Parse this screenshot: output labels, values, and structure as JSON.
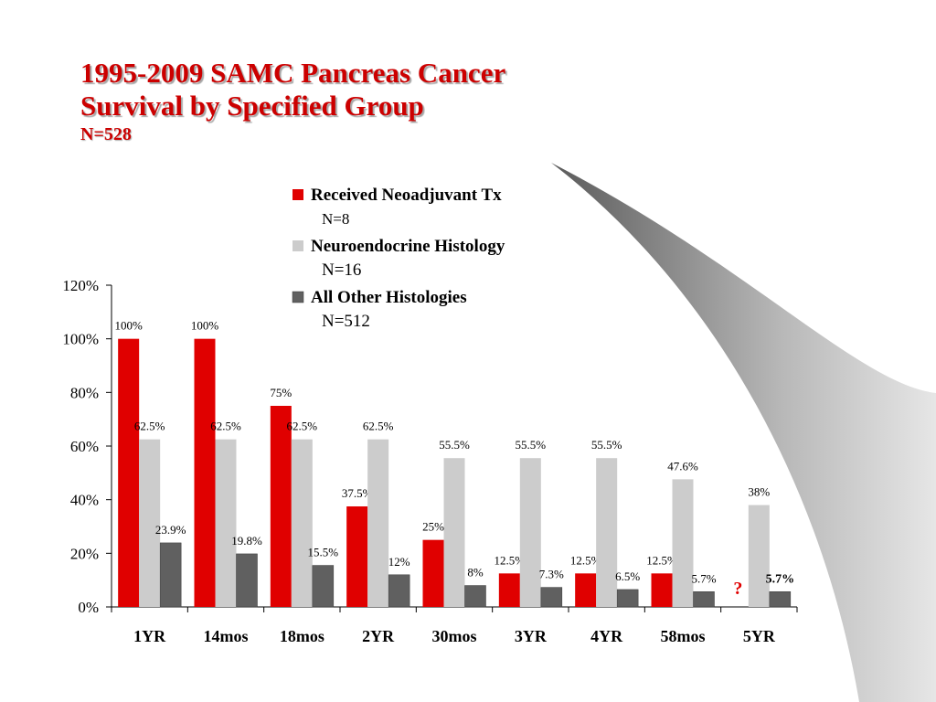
{
  "slide": {
    "title_line1": "1995-2009 SAMC Pancreas Cancer",
    "title_line2": "Survival by Specified Group",
    "subtitle": "N=528"
  },
  "colors": {
    "title": "#cc0000",
    "series_red": "#e00000",
    "series_light": "#cccccc",
    "series_dark": "#606060"
  },
  "chart_data": {
    "type": "bar",
    "categories": [
      "1YR",
      "14mos",
      "18mos",
      "2YR",
      "30mos",
      "3YR",
      "4YR",
      "58mos",
      "5YR"
    ],
    "ylim": [
      0,
      120
    ],
    "yticks": [
      "0%",
      "20%",
      "40%",
      "60%",
      "80%",
      "100%",
      "120%"
    ],
    "legend_position": "top-right",
    "grid": false,
    "series": [
      {
        "name": "Received Neoadjuvant Tx",
        "n_label": "N=8",
        "values": [
          100,
          100,
          75,
          37.5,
          25,
          12.5,
          12.5,
          12.5,
          null
        ],
        "labels": [
          "100%",
          "100%",
          "75%",
          "37.5%",
          "25%",
          "12.5%",
          "12.5%",
          "12.5%",
          "?"
        ]
      },
      {
        "name": "Neuroendocrine Histology",
        "n_label": "N=16",
        "values": [
          62.5,
          62.5,
          62.5,
          62.5,
          55.5,
          55.5,
          55.5,
          47.6,
          38
        ],
        "labels": [
          "62.5%",
          "62.5%",
          "62.5%",
          "62.5%",
          "55.5%",
          "55.5%",
          "55.5%",
          "47.6%",
          "38%"
        ]
      },
      {
        "name": "All Other Histologies",
        "n_label": "N=512",
        "values": [
          23.9,
          19.8,
          15.5,
          12,
          8,
          7.3,
          6.5,
          5.7,
          5.7
        ],
        "labels": [
          "23.9%",
          "19.8%",
          "15.5%",
          "12%",
          "8%",
          "7.3%",
          "6.5%",
          "5.7%",
          "5.7%"
        ]
      }
    ]
  }
}
